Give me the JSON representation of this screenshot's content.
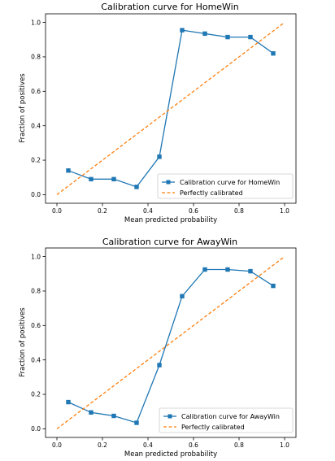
{
  "chart_data": [
    {
      "type": "line",
      "title": "Calibration curve for HomeWin",
      "xlabel": "Mean predicted probability",
      "ylabel": "Fraction of positives",
      "xlim": [
        -0.05,
        1.05
      ],
      "ylim": [
        -0.05,
        1.05
      ],
      "xticks": [
        "0.0",
        "0.2",
        "0.4",
        "0.6",
        "0.8",
        "1.0"
      ],
      "yticks": [
        "0.0",
        "0.2",
        "0.4",
        "0.6",
        "0.8",
        "1.0"
      ],
      "grid": false,
      "legend_position": "lower-right",
      "series": [
        {
          "name": "Calibration curve for HomeWin",
          "color": "#1f77b4",
          "marker": "square",
          "x": [
            0.05,
            0.15,
            0.25,
            0.35,
            0.45,
            0.55,
            0.65,
            0.75,
            0.85,
            0.95
          ],
          "y": [
            0.14,
            0.09,
            0.09,
            0.045,
            0.22,
            0.955,
            0.935,
            0.915,
            0.915,
            0.82
          ]
        },
        {
          "name": "Perfectly calibrated",
          "color": "#ff7f0e",
          "dashed": true,
          "x": [
            0,
            1
          ],
          "y": [
            0,
            1
          ]
        }
      ]
    },
    {
      "type": "line",
      "title": "Calibration curve for AwayWin",
      "xlabel": "Mean predicted probability",
      "ylabel": "Fraction of positives",
      "xlim": [
        -0.05,
        1.05
      ],
      "ylim": [
        -0.05,
        1.05
      ],
      "xticks": [
        "0.0",
        "0.2",
        "0.4",
        "0.6",
        "0.8",
        "1.0"
      ],
      "yticks": [
        "0.0",
        "0.2",
        "0.4",
        "0.6",
        "0.8",
        "1.0"
      ],
      "grid": false,
      "legend_position": "lower-right",
      "series": [
        {
          "name": "Calibration curve for AwayWin",
          "color": "#1f77b4",
          "marker": "square",
          "x": [
            0.05,
            0.15,
            0.25,
            0.35,
            0.45,
            0.55,
            0.65,
            0.75,
            0.85,
            0.95
          ],
          "y": [
            0.155,
            0.095,
            0.075,
            0.035,
            0.37,
            0.77,
            0.925,
            0.925,
            0.915,
            0.83
          ]
        },
        {
          "name": "Perfectly calibrated",
          "color": "#ff7f0e",
          "dashed": true,
          "x": [
            0,
            1
          ],
          "y": [
            0,
            1
          ]
        }
      ]
    }
  ]
}
